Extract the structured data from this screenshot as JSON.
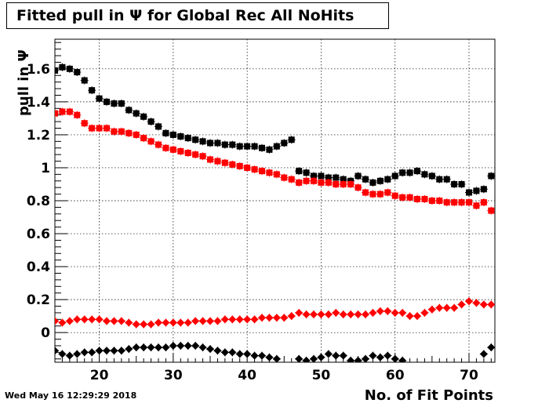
{
  "chart_data": {
    "type": "scatter",
    "title": "Fitted pull in  Ψ  for Global Rec All NoHits",
    "xlabel": "No. of Fit Points",
    "ylabel": "pull in Ψ",
    "xlim": [
      14,
      73.5
    ],
    "ylim": [
      -0.18,
      1.78
    ],
    "x_ticks": [
      20,
      30,
      40,
      50,
      60,
      70
    ],
    "y_ticks": [
      0,
      0.2,
      0.4,
      0.6,
      0.8,
      1,
      1.2,
      1.4,
      1.6
    ],
    "y_tick_labels": [
      "0",
      "0.2",
      "0.4",
      "0.6",
      "0.8",
      "1",
      "1.2",
      "1.4",
      "1.6"
    ],
    "grid": true,
    "colors": {
      "black": "#000000",
      "red": "#ff0000"
    },
    "series": [
      {
        "marker": "square",
        "color": "#000000",
        "x": [
          14,
          15,
          16,
          17,
          18,
          19,
          20,
          21,
          22,
          23,
          24,
          25,
          26,
          27,
          28,
          29,
          30,
          31,
          32,
          33,
          34,
          35,
          36,
          37,
          38,
          39,
          40,
          41,
          42,
          43,
          44,
          45,
          46,
          47,
          48,
          49,
          50,
          51,
          52,
          53,
          54,
          55,
          56,
          57,
          58,
          59,
          60,
          61,
          62,
          63,
          64,
          65,
          66,
          67,
          68,
          69,
          70,
          71,
          72,
          73
        ],
        "y": [
          1.59,
          1.61,
          1.6,
          1.58,
          1.53,
          1.47,
          1.42,
          1.4,
          1.39,
          1.39,
          1.35,
          1.33,
          1.31,
          1.28,
          1.25,
          1.21,
          1.2,
          1.19,
          1.18,
          1.17,
          1.16,
          1.15,
          1.15,
          1.14,
          1.14,
          1.13,
          1.13,
          1.13,
          1.12,
          1.11,
          1.13,
          1.15,
          1.17,
          0.98,
          0.97,
          0.95,
          0.95,
          0.94,
          0.94,
          0.93,
          0.92,
          0.95,
          0.93,
          0.91,
          0.92,
          0.93,
          0.95,
          0.97,
          0.97,
          0.98,
          0.96,
          0.95,
          0.93,
          0.93,
          0.9,
          0.9,
          0.85,
          0.86,
          0.87,
          0.95
        ]
      },
      {
        "marker": "square",
        "color": "#ff0000",
        "x": [
          14,
          15,
          16,
          17,
          18,
          19,
          20,
          21,
          22,
          23,
          24,
          25,
          26,
          27,
          28,
          29,
          30,
          31,
          32,
          33,
          34,
          35,
          36,
          37,
          38,
          39,
          40,
          41,
          42,
          43,
          44,
          45,
          46,
          47,
          48,
          49,
          50,
          51,
          52,
          53,
          54,
          55,
          56,
          57,
          58,
          59,
          60,
          61,
          62,
          63,
          64,
          65,
          66,
          67,
          68,
          69,
          70,
          71,
          72,
          73
        ],
        "y": [
          1.33,
          1.34,
          1.34,
          1.32,
          1.27,
          1.24,
          1.24,
          1.24,
          1.22,
          1.22,
          1.21,
          1.2,
          1.18,
          1.16,
          1.14,
          1.12,
          1.11,
          1.1,
          1.09,
          1.08,
          1.07,
          1.05,
          1.04,
          1.03,
          1.02,
          1.01,
          1.0,
          0.99,
          0.98,
          0.97,
          0.96,
          0.94,
          0.93,
          0.91,
          0.92,
          0.92,
          0.91,
          0.91,
          0.9,
          0.9,
          0.9,
          0.88,
          0.85,
          0.84,
          0.84,
          0.85,
          0.83,
          0.82,
          0.82,
          0.81,
          0.81,
          0.8,
          0.8,
          0.79,
          0.79,
          0.79,
          0.79,
          0.77,
          0.79,
          0.74
        ]
      },
      {
        "marker": "diamond",
        "color": "#ff0000",
        "x": [
          14,
          15,
          16,
          17,
          18,
          19,
          20,
          21,
          22,
          23,
          24,
          25,
          26,
          27,
          28,
          29,
          30,
          31,
          32,
          33,
          34,
          35,
          36,
          37,
          38,
          39,
          40,
          41,
          42,
          43,
          44,
          45,
          46,
          47,
          48,
          49,
          50,
          51,
          52,
          53,
          54,
          55,
          56,
          57,
          58,
          59,
          60,
          61,
          62,
          63,
          64,
          65,
          66,
          67,
          68,
          69,
          70,
          71,
          72,
          73
        ],
        "y": [
          0.07,
          0.06,
          0.07,
          0.08,
          0.08,
          0.08,
          0.08,
          0.07,
          0.07,
          0.07,
          0.06,
          0.05,
          0.05,
          0.05,
          0.06,
          0.06,
          0.06,
          0.06,
          0.06,
          0.07,
          0.07,
          0.07,
          0.07,
          0.08,
          0.08,
          0.08,
          0.08,
          0.08,
          0.09,
          0.09,
          0.09,
          0.09,
          0.1,
          0.12,
          0.11,
          0.11,
          0.11,
          0.11,
          0.12,
          0.11,
          0.11,
          0.11,
          0.11,
          0.12,
          0.13,
          0.13,
          0.12,
          0.12,
          0.1,
          0.1,
          0.12,
          0.14,
          0.15,
          0.15,
          0.15,
          0.17,
          0.19,
          0.18,
          0.17,
          0.17
        ]
      },
      {
        "marker": "diamond",
        "color": "#000000",
        "x": [
          14,
          15,
          16,
          17,
          18,
          19,
          20,
          21,
          22,
          23,
          24,
          25,
          26,
          27,
          28,
          29,
          30,
          31,
          32,
          33,
          34,
          35,
          36,
          37,
          38,
          39,
          40,
          41,
          42,
          43,
          44,
          47,
          48,
          49,
          50,
          51,
          52,
          53,
          54,
          55,
          56,
          57,
          58,
          59,
          60,
          61,
          72,
          73
        ],
        "y": [
          -0.11,
          -0.13,
          -0.14,
          -0.13,
          -0.12,
          -0.12,
          -0.11,
          -0.11,
          -0.11,
          -0.11,
          -0.1,
          -0.09,
          -0.09,
          -0.09,
          -0.09,
          -0.09,
          -0.08,
          -0.08,
          -0.08,
          -0.08,
          -0.09,
          -0.1,
          -0.11,
          -0.12,
          -0.12,
          -0.13,
          -0.13,
          -0.14,
          -0.14,
          -0.15,
          -0.16,
          -0.16,
          -0.17,
          -0.16,
          -0.15,
          -0.13,
          -0.14,
          -0.14,
          -0.17,
          -0.17,
          -0.16,
          -0.14,
          -0.15,
          -0.14,
          -0.16,
          -0.17,
          -0.13,
          -0.09
        ]
      }
    ]
  },
  "footer": {
    "timestamp": "Wed May 16 12:29:29 2018"
  }
}
